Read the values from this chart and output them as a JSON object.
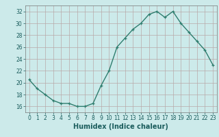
{
  "x": [
    0,
    1,
    2,
    3,
    4,
    5,
    6,
    7,
    8,
    9,
    10,
    11,
    12,
    13,
    14,
    15,
    16,
    17,
    18,
    19,
    20,
    21,
    22,
    23
  ],
  "y": [
    20.5,
    19.0,
    18.0,
    17.0,
    16.5,
    16.5,
    16.0,
    16.0,
    16.5,
    19.5,
    22.0,
    26.0,
    27.5,
    29.0,
    30.0,
    31.5,
    32.0,
    31.0,
    32.0,
    30.0,
    28.5,
    27.0,
    25.5,
    23.0
  ],
  "line_color": "#2e7d6e",
  "marker": "+",
  "markersize": 3.5,
  "linewidth": 1.0,
  "bg_color": "#cceaea",
  "grid_color": "#b8a8a8",
  "xlabel": "Humidex (Indice chaleur)",
  "xlabel_fontsize": 7,
  "xlabel_bold": true,
  "ylim": [
    15,
    33
  ],
  "xlim": [
    -0.5,
    23.5
  ],
  "yticks": [
    16,
    18,
    20,
    22,
    24,
    26,
    28,
    30,
    32
  ],
  "xticks": [
    0,
    1,
    2,
    3,
    4,
    5,
    6,
    7,
    8,
    9,
    10,
    11,
    12,
    13,
    14,
    15,
    16,
    17,
    18,
    19,
    20,
    21,
    22,
    23
  ],
  "tick_fontsize": 5.5
}
